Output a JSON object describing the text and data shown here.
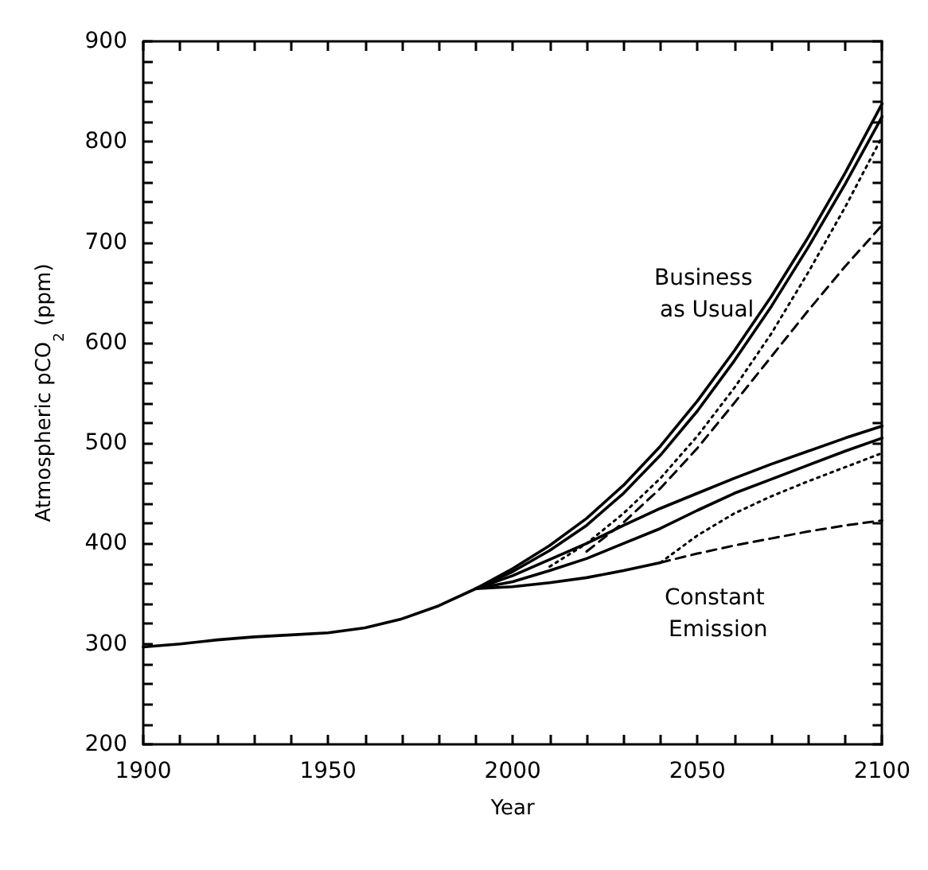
{
  "chart_data": {
    "type": "line",
    "xlabel": "Year",
    "ylabel": "Atmospheric pCO$_{2}$ (ppm)",
    "xlim": [
      1900,
      2100
    ],
    "ylim": [
      200,
      900
    ],
    "xticks": [
      1900,
      {
        "value": 1910,
        "label": null
      },
      {
        "value": 1920,
        "label": null
      },
      {
        "value": 1930,
        "label": null
      },
      {
        "value": 1940,
        "label": null
      },
      1950,
      {
        "value": 1960,
        "label": null
      },
      {
        "value": 1970,
        "label": null
      },
      {
        "value": 1980,
        "label": null
      },
      {
        "value": 1990,
        "label": null
      },
      2000,
      {
        "value": 2010,
        "label": null
      },
      {
        "value": 2020,
        "label": null
      },
      {
        "value": 2030,
        "label": null
      },
      {
        "value": 2040,
        "label": null
      },
      2050,
      {
        "value": 2060,
        "label": null
      },
      {
        "value": 2070,
        "label": null
      },
      {
        "value": 2080,
        "label": null
      },
      {
        "value": 2090,
        "label": null
      },
      2100
    ],
    "yticks": [
      200,
      {
        "value": 220,
        "label": null
      },
      {
        "value": 240,
        "label": null
      },
      {
        "value": 260,
        "label": null
      },
      {
        "value": 280,
        "label": null
      },
      300,
      {
        "value": 320,
        "label": null
      },
      {
        "value": 340,
        "label": null
      },
      {
        "value": 360,
        "label": null
      },
      {
        "value": 380,
        "label": null
      },
      400,
      {
        "value": 420,
        "label": null
      },
      {
        "value": 440,
        "label": null
      },
      {
        "value": 460,
        "label": null
      },
      {
        "value": 480,
        "label": null
      },
      500,
      {
        "value": 520,
        "label": null
      },
      {
        "value": 540,
        "label": null
      },
      {
        "value": 560,
        "label": null
      },
      {
        "value": 580,
        "label": null
      },
      600,
      {
        "value": 620,
        "label": null
      },
      {
        "value": 640,
        "label": null
      },
      {
        "value": 660,
        "label": null
      },
      {
        "value": 680,
        "label": null
      },
      700,
      {
        "value": 720,
        "label": null
      },
      {
        "value": 740,
        "label": null
      },
      {
        "value": 760,
        "label": null
      },
      {
        "value": 780,
        "label": null
      },
      800,
      {
        "value": 820,
        "label": null
      },
      {
        "value": 840,
        "label": null
      },
      {
        "value": 860,
        "label": null
      },
      {
        "value": 880,
        "label": null
      },
      900
    ],
    "grid": false,
    "marker": "none",
    "series": [
      {
        "color": "#000000",
        "line_style": "solid",
        "x": [
          1900,
          1910,
          1920,
          1930,
          1940,
          1950,
          1960,
          1970,
          1980,
          1990,
          2000,
          2010,
          2020,
          2030,
          2040,
          2050,
          2060,
          2070,
          2080,
          2090,
          2100
        ],
        "values": [
          297,
          300,
          304,
          307,
          309,
          311,
          316,
          325,
          338,
          355,
          375,
          398,
          425,
          458,
          497,
          542,
          592,
          646,
          705,
          769,
          838
        ]
      },
      {
        "color": "#000000",
        "line_style": "solid",
        "x": [
          1990,
          2000,
          2010,
          2020,
          2030,
          2040,
          2050,
          2060,
          2070,
          2080,
          2090,
          2100
        ],
        "values": [
          355,
          372,
          393,
          418,
          450,
          488,
          532,
          582,
          636,
          695,
          758,
          825
        ]
      },
      {
        "color": "#000000",
        "line_style": "dotted",
        "x": [
          2010,
          2020,
          2030,
          2040,
          2050,
          2060,
          2070,
          2080,
          2090,
          2100
        ],
        "values": [
          377,
          400,
          430,
          465,
          507,
          555,
          609,
          670,
          735,
          805
        ]
      },
      {
        "color": "#000000",
        "line_style": "dashed",
        "x": [
          2020,
          2030,
          2040,
          2050,
          2060,
          2070,
          2080,
          2090,
          2100
        ],
        "values": [
          392,
          421,
          455,
          495,
          540,
          586,
          632,
          676,
          717
        ]
      },
      {
        "color": "#000000",
        "line_style": "solid",
        "x": [
          1990,
          2000,
          2010,
          2020,
          2030,
          2040,
          2050,
          2060,
          2070,
          2080,
          2090,
          2100
        ],
        "values": [
          355,
          368,
          384,
          400,
          418,
          435,
          450,
          465,
          479,
          492,
          505,
          517
        ]
      },
      {
        "color": "#000000",
        "line_style": "solid",
        "x": [
          1990,
          2000,
          2010,
          2020,
          2030,
          2040,
          2050,
          2060,
          2070,
          2080,
          2090,
          2100
        ],
        "values": [
          355,
          362,
          373,
          385,
          400,
          415,
          433,
          450,
          464,
          478,
          492,
          505
        ]
      },
      {
        "color": "#000000",
        "line_style": "solid",
        "x": [
          1990,
          2000,
          2010,
          2020,
          2030,
          2040
        ],
        "values": [
          355,
          357,
          361,
          366,
          373,
          381
        ]
      },
      {
        "color": "#000000",
        "line_style": "dotted",
        "x": [
          2040,
          2050,
          2060,
          2070,
          2080,
          2090,
          2100
        ],
        "values": [
          381,
          408,
          430,
          447,
          462,
          476,
          490
        ]
      },
      {
        "color": "#000000",
        "line_style": "dashed",
        "x": [
          2040,
          2050,
          2060,
          2070,
          2080,
          2090,
          2100
        ],
        "values": [
          381,
          390,
          398,
          405,
          412,
          418,
          423
        ]
      }
    ],
    "annotations": [
      "Business as Usual",
      "Constant Emission"
    ]
  }
}
